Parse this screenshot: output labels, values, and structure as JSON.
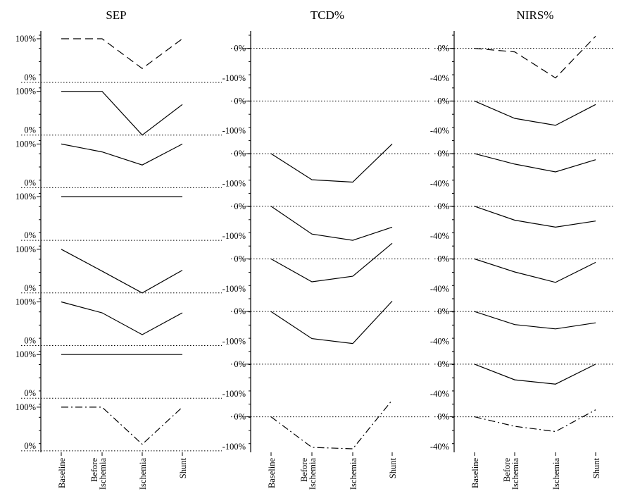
{
  "chart_data": [
    {
      "type": "line",
      "title": "SEP",
      "categories": [
        "Baseline",
        "Before Ischemia",
        "Ischemia",
        "Shunt"
      ],
      "category_lines": [
        [
          "Baseline"
        ],
        [
          "Before",
          "Ischemia"
        ],
        [
          "Ischemia"
        ],
        [
          "Shunt"
        ]
      ],
      "ylim": [
        0,
        100
      ],
      "ytick_labels": [
        "100%",
        "0%"
      ],
      "reference_line": 0,
      "grid": false,
      "series": [
        {
          "style": "dashed",
          "values": [
            100,
            100,
            32,
            100
          ]
        },
        {
          "style": "solid",
          "values": [
            100,
            100,
            0,
            70
          ]
        },
        {
          "style": "solid",
          "values": [
            100,
            82,
            52,
            100
          ]
        },
        {
          "style": "solid",
          "values": [
            100,
            100,
            100,
            100
          ]
        },
        {
          "style": "solid",
          "values": [
            100,
            50,
            0,
            52
          ]
        },
        {
          "style": "solid",
          "values": [
            100,
            75,
            25,
            75
          ]
        },
        {
          "style": "solid",
          "values": [
            100,
            100,
            100,
            100
          ]
        },
        {
          "style": "dashdot",
          "values": [
            100,
            100,
            15,
            100
          ]
        }
      ]
    },
    {
      "type": "line",
      "title": "TCD%",
      "categories": [
        "Baseline",
        "Before Ischemia",
        "Ischemia",
        "Shunt"
      ],
      "category_lines": [
        [
          "Baseline"
        ],
        [
          "Before",
          "Ischemia"
        ],
        [
          "Ischemia"
        ],
        [
          "Shunt"
        ]
      ],
      "ylim": [
        -100,
        50
      ],
      "ytick_labels": [
        "0%",
        "-100%"
      ],
      "reference_line": 0,
      "grid": false,
      "series": [
        {
          "style": "dashed",
          "values": [
            null,
            null,
            null,
            null
          ]
        },
        {
          "style": "solid",
          "values": [
            null,
            null,
            null,
            null
          ]
        },
        {
          "style": "solid",
          "values": [
            0,
            -75,
            -82,
            28
          ]
        },
        {
          "style": "solid",
          "values": [
            0,
            -80,
            -98,
            -60
          ]
        },
        {
          "style": "solid",
          "values": [
            0,
            -66,
            -50,
            45
          ]
        },
        {
          "style": "solid",
          "values": [
            0,
            -78,
            -92,
            30
          ]
        },
        {
          "style": "solid",
          "values": [
            null,
            null,
            null,
            null
          ]
        },
        {
          "style": "dashdot",
          "values": [
            0,
            -88,
            -92,
            48
          ]
        }
      ]
    },
    {
      "type": "line",
      "title": "NIRS%",
      "categories": [
        "Baseline",
        "Before Ischemia",
        "Ischemia",
        "Shunt"
      ],
      "category_lines": [
        [
          "Baseline"
        ],
        [
          "Before",
          "Ischemia"
        ],
        [
          "Ischemia"
        ],
        [
          "Shunt"
        ]
      ],
      "ylim": [
        -40,
        20
      ],
      "ytick_labels": [
        "0%",
        "-40%"
      ],
      "reference_line": 0,
      "grid": false,
      "series": [
        {
          "style": "dashed",
          "values": [
            0,
            -4,
            -34,
            14
          ]
        },
        {
          "style": "solid",
          "values": [
            0,
            -20,
            -28,
            -4
          ]
        },
        {
          "style": "solid",
          "values": [
            0,
            -12,
            -21,
            -7
          ]
        },
        {
          "style": "solid",
          "values": [
            0,
            -16,
            -24,
            -17
          ]
        },
        {
          "style": "solid",
          "values": [
            0,
            -15,
            -27,
            -4
          ]
        },
        {
          "style": "solid",
          "values": [
            0,
            -15,
            -20,
            -13
          ]
        },
        {
          "style": "solid",
          "values": [
            0,
            -18,
            -23,
            0
          ]
        },
        {
          "style": "dashdot",
          "values": [
            0,
            -11,
            -17,
            8
          ]
        }
      ]
    }
  ]
}
